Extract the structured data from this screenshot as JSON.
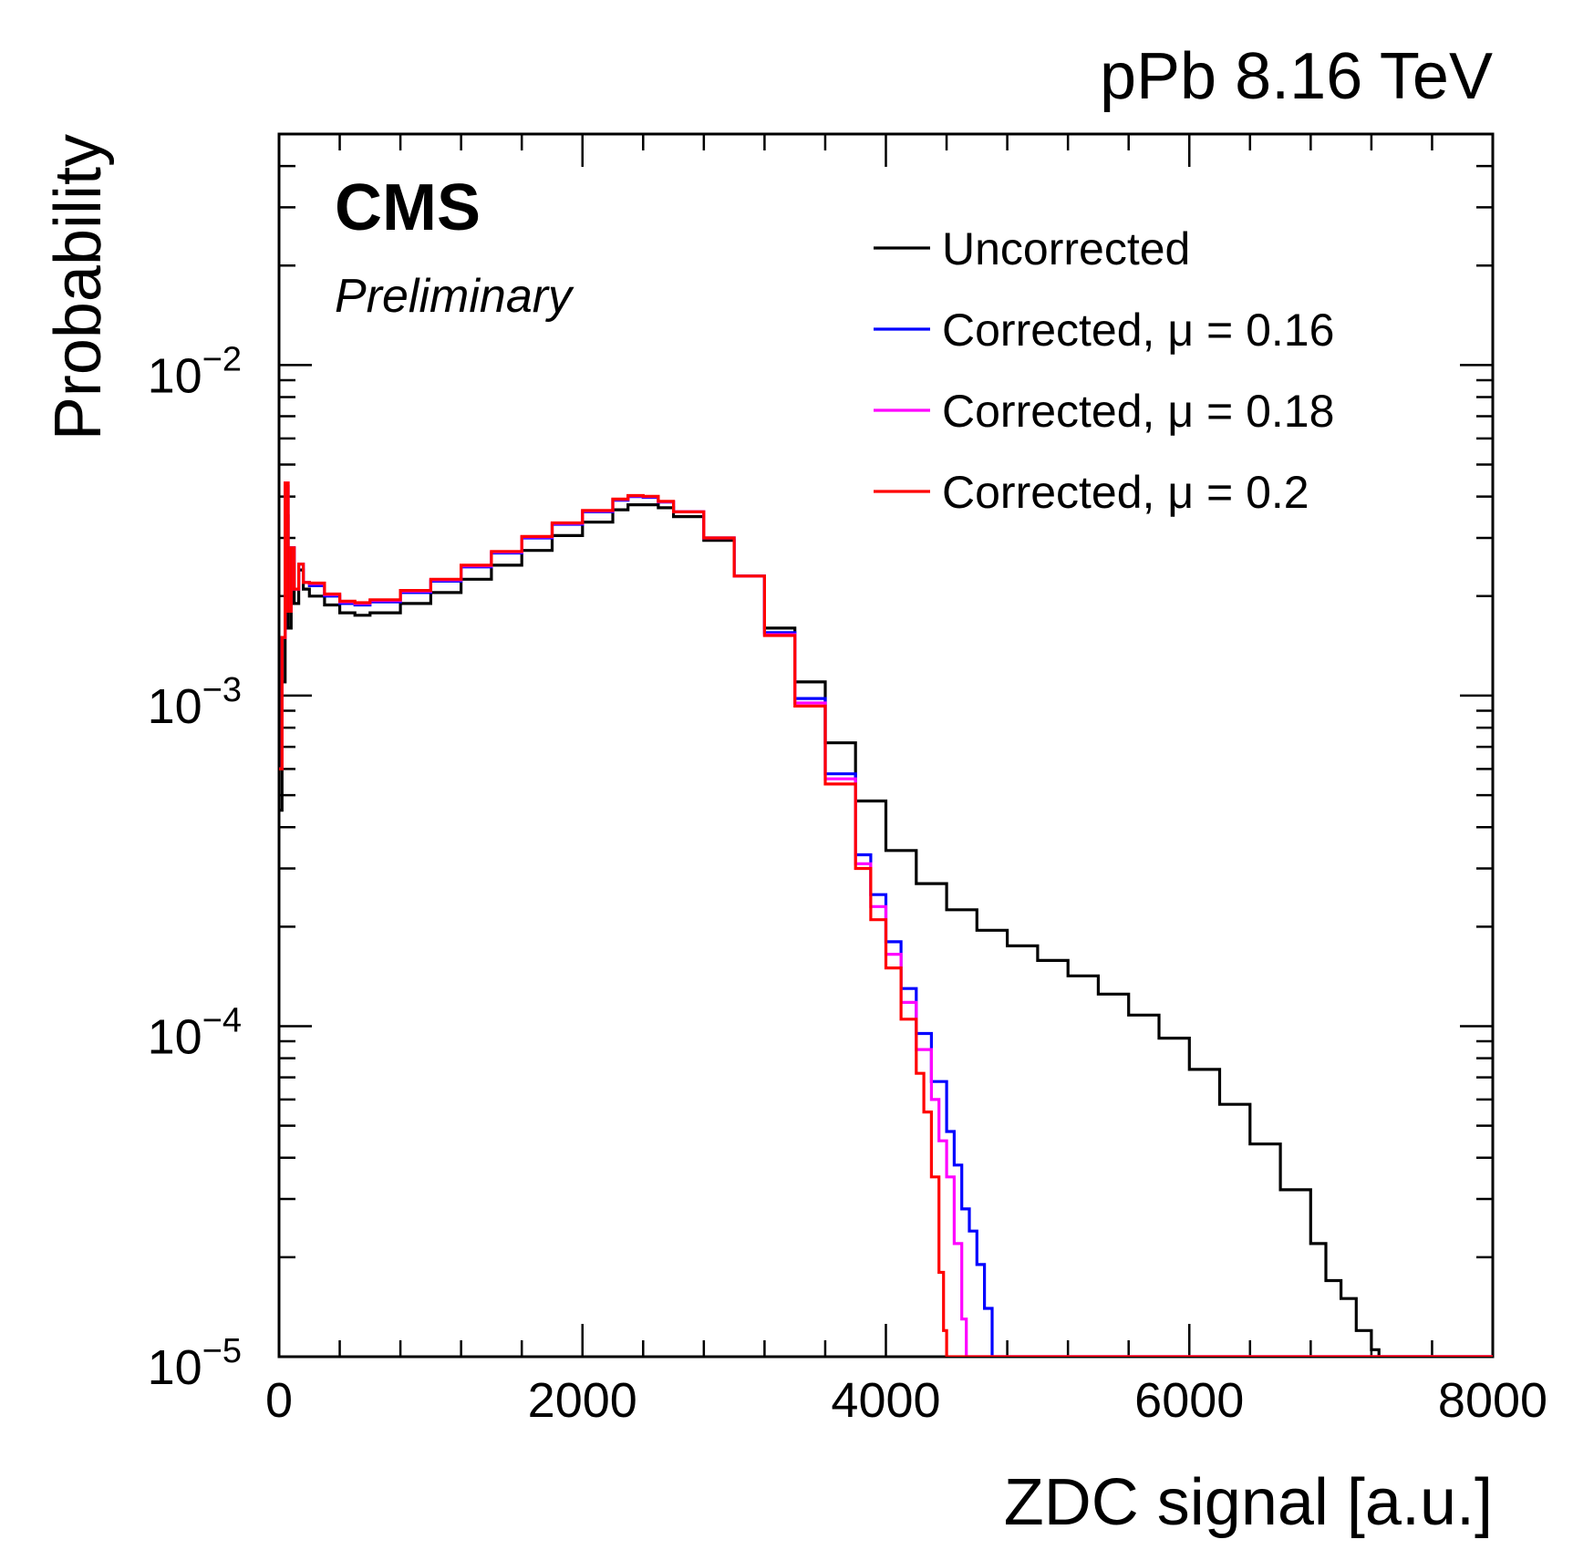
{
  "chart_data": {
    "type": "line",
    "title": "pPb 8.16 TeV",
    "experiment": "CMS",
    "status": "Preliminary",
    "xlabel": "ZDC signal [a.u.]",
    "ylabel": "Probability",
    "xlim": [
      0,
      8000
    ],
    "ylim": [
      1e-05,
      0.05
    ],
    "yscale": "log",
    "legend_position": "top-right",
    "x_tick_labels": [
      {
        "value": 0,
        "label": "0"
      },
      {
        "value": 2000,
        "label": "2000"
      },
      {
        "value": 4000,
        "label": "4000"
      },
      {
        "value": 6000,
        "label": "6000"
      },
      {
        "value": 8000,
        "label": "8000"
      }
    ],
    "y_tick_labels": [
      {
        "value": 1e-05,
        "base": "10",
        "exp": "−5"
      },
      {
        "value": 0.0001,
        "base": "10",
        "exp": "−4"
      },
      {
        "value": 0.001,
        "base": "10",
        "exp": "−3"
      },
      {
        "value": 0.01,
        "base": "10",
        "exp": "−2"
      }
    ],
    "series": [
      {
        "name": "Uncorrected",
        "color": "#000000",
        "points": [
          [
            0,
            0.00045
          ],
          [
            20,
            0.0011
          ],
          [
            40,
            0.0035
          ],
          [
            60,
            0.0016
          ],
          [
            80,
            0.0028
          ],
          [
            100,
            0.0019
          ],
          [
            130,
            0.0024
          ],
          [
            160,
            0.0021
          ],
          [
            200,
            0.002
          ],
          [
            300,
            0.00188
          ],
          [
            400,
            0.00178
          ],
          [
            500,
            0.00175
          ],
          [
            600,
            0.00178
          ],
          [
            800,
            0.0019
          ],
          [
            1000,
            0.00205
          ],
          [
            1200,
            0.00225
          ],
          [
            1400,
            0.00248
          ],
          [
            1600,
            0.00275
          ],
          [
            1800,
            0.00305
          ],
          [
            2000,
            0.00335
          ],
          [
            2200,
            0.00365
          ],
          [
            2300,
            0.00378
          ],
          [
            2400,
            0.00378
          ],
          [
            2500,
            0.0037
          ],
          [
            2600,
            0.00348
          ],
          [
            2800,
            0.00295
          ],
          [
            3000,
            0.0023
          ],
          [
            3200,
            0.0016
          ],
          [
            3400,
            0.0011
          ],
          [
            3600,
            0.00072
          ],
          [
            3800,
            0.00048
          ],
          [
            4000,
            0.00034
          ],
          [
            4200,
            0.00027
          ],
          [
            4400,
            0.000225
          ],
          [
            4600,
            0.000195
          ],
          [
            4800,
            0.000175
          ],
          [
            5000,
            0.000158
          ],
          [
            5200,
            0.000142
          ],
          [
            5400,
            0.000125
          ],
          [
            5600,
            0.000108
          ],
          [
            5800,
            9.2e-05
          ],
          [
            6000,
            7.4e-05
          ],
          [
            6200,
            5.8e-05
          ],
          [
            6400,
            4.4e-05
          ],
          [
            6600,
            3.2e-05
          ],
          [
            6800,
            2.2e-05
          ],
          [
            6900,
            1.7e-05
          ],
          [
            7000,
            1.5e-05
          ],
          [
            7100,
            1.2e-05
          ],
          [
            7200,
            1.05e-05
          ],
          [
            7250,
            1e-05
          ]
        ]
      },
      {
        "name": "Corrected, μ = 0.16",
        "color": "#0000ff",
        "points": [
          [
            0,
            0.0006
          ],
          [
            20,
            0.0015
          ],
          [
            40,
            0.0043
          ],
          [
            60,
            0.0018
          ],
          [
            80,
            0.0028
          ],
          [
            100,
            0.0021
          ],
          [
            130,
            0.0025
          ],
          [
            160,
            0.0022
          ],
          [
            200,
            0.00215
          ],
          [
            300,
            0.002
          ],
          [
            400,
            0.0019
          ],
          [
            500,
            0.00188
          ],
          [
            600,
            0.00192
          ],
          [
            800,
            0.00205
          ],
          [
            1000,
            0.00222
          ],
          [
            1200,
            0.00245
          ],
          [
            1400,
            0.0027
          ],
          [
            1600,
            0.003
          ],
          [
            1800,
            0.0033
          ],
          [
            2000,
            0.0036
          ],
          [
            2200,
            0.0039
          ],
          [
            2300,
            0.004
          ],
          [
            2400,
            0.00398
          ],
          [
            2500,
            0.00385
          ],
          [
            2600,
            0.0036
          ],
          [
            2800,
            0.003
          ],
          [
            3000,
            0.0023
          ],
          [
            3200,
            0.00155
          ],
          [
            3400,
            0.00098
          ],
          [
            3600,
            0.00058
          ],
          [
            3800,
            0.00033
          ],
          [
            3900,
            0.00025
          ],
          [
            4000,
            0.00018
          ],
          [
            4100,
            0.00013
          ],
          [
            4200,
            9.5e-05
          ],
          [
            4300,
            6.8e-05
          ],
          [
            4400,
            4.8e-05
          ],
          [
            4450,
            3.8e-05
          ],
          [
            4500,
            2.8e-05
          ],
          [
            4550,
            2.4e-05
          ],
          [
            4600,
            1.9e-05
          ],
          [
            4650,
            1.4e-05
          ],
          [
            4700,
            1e-05
          ]
        ]
      },
      {
        "name": "Corrected, μ = 0.18",
        "color": "#ff00ff",
        "points": [
          [
            0,
            0.0006
          ],
          [
            20,
            0.0015
          ],
          [
            40,
            0.0044
          ],
          [
            60,
            0.0018
          ],
          [
            80,
            0.0028
          ],
          [
            100,
            0.0021
          ],
          [
            130,
            0.0025
          ],
          [
            160,
            0.0022
          ],
          [
            200,
            0.00218
          ],
          [
            300,
            0.00202
          ],
          [
            400,
            0.00192
          ],
          [
            500,
            0.0019
          ],
          [
            600,
            0.00194
          ],
          [
            800,
            0.00207
          ],
          [
            1000,
            0.00224
          ],
          [
            1200,
            0.00247
          ],
          [
            1400,
            0.00272
          ],
          [
            1600,
            0.00302
          ],
          [
            1800,
            0.00332
          ],
          [
            2000,
            0.00362
          ],
          [
            2200,
            0.00392
          ],
          [
            2300,
            0.00402
          ],
          [
            2400,
            0.004
          ],
          [
            2500,
            0.00386
          ],
          [
            2600,
            0.0036
          ],
          [
            2800,
            0.003
          ],
          [
            3000,
            0.0023
          ],
          [
            3200,
            0.00153
          ],
          [
            3400,
            0.00095
          ],
          [
            3600,
            0.00056
          ],
          [
            3800,
            0.00031
          ],
          [
            3900,
            0.00023
          ],
          [
            4000,
            0.000165
          ],
          [
            4100,
            0.000118
          ],
          [
            4200,
            8.5e-05
          ],
          [
            4300,
            6e-05
          ],
          [
            4350,
            4.5e-05
          ],
          [
            4400,
            3.5e-05
          ],
          [
            4450,
            2.2e-05
          ],
          [
            4500,
            1.3e-05
          ],
          [
            4530,
            1e-05
          ]
        ]
      },
      {
        "name": "Corrected, μ = 0.2",
        "color": "#ff0000",
        "points": [
          [
            0,
            0.0006
          ],
          [
            20,
            0.0015
          ],
          [
            40,
            0.0044
          ],
          [
            60,
            0.0018
          ],
          [
            80,
            0.0028
          ],
          [
            100,
            0.0021
          ],
          [
            130,
            0.0025
          ],
          [
            160,
            0.0022
          ],
          [
            200,
            0.00219
          ],
          [
            300,
            0.00203
          ],
          [
            400,
            0.00193
          ],
          [
            500,
            0.00191
          ],
          [
            600,
            0.00195
          ],
          [
            800,
            0.00208
          ],
          [
            1000,
            0.00225
          ],
          [
            1200,
            0.00248
          ],
          [
            1400,
            0.00273
          ],
          [
            1600,
            0.00303
          ],
          [
            1800,
            0.00333
          ],
          [
            2000,
            0.00363
          ],
          [
            2200,
            0.00393
          ],
          [
            2300,
            0.00403
          ],
          [
            2400,
            0.00401
          ],
          [
            2500,
            0.00387
          ],
          [
            2600,
            0.0036
          ],
          [
            2800,
            0.003
          ],
          [
            3000,
            0.0023
          ],
          [
            3200,
            0.00152
          ],
          [
            3400,
            0.00093
          ],
          [
            3600,
            0.00054
          ],
          [
            3800,
            0.0003
          ],
          [
            3900,
            0.00021
          ],
          [
            4000,
            0.00015
          ],
          [
            4100,
            0.000105
          ],
          [
            4200,
            7.2e-05
          ],
          [
            4250,
            5.5e-05
          ],
          [
            4300,
            3.5e-05
          ],
          [
            4350,
            1.8e-05
          ],
          [
            4380,
            1.2e-05
          ],
          [
            4400,
            1e-05
          ]
        ]
      }
    ]
  }
}
